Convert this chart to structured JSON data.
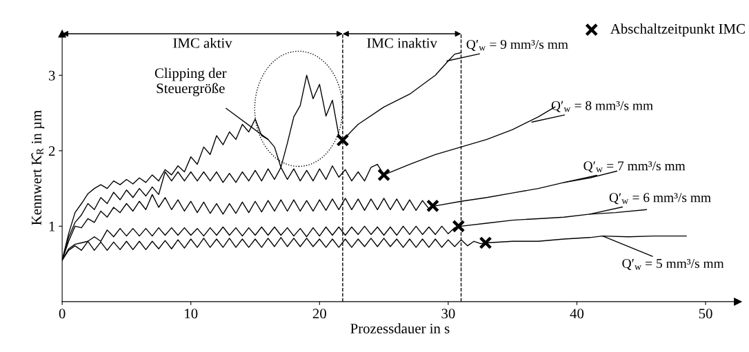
{
  "chart_data": {
    "type": "line",
    "xlabel": "Prozessdauer in s",
    "ylabel": "Kennwert K̂$_{R}$ in µm",
    "xlim": [
      0,
      52.5
    ],
    "ylim": [
      0,
      3.55
    ],
    "xticks": [
      0,
      10,
      20,
      30,
      40,
      50
    ],
    "yticks": [
      1,
      2,
      3
    ],
    "grid": false,
    "legend": "top right",
    "line_style": "solid",
    "series": [
      {
        "color": "#000000",
        "x": [
          0,
          0.5,
          1,
          1.5,
          2,
          2.5,
          3,
          3.5,
          4,
          4.5,
          5,
          5.5,
          6,
          6.5,
          7,
          7.5,
          8,
          8.5,
          9,
          9.5,
          10,
          10.5,
          11,
          11.5,
          12,
          12.5,
          13,
          13.5,
          14,
          14.5,
          15,
          15.5,
          16,
          16.5,
          17,
          17.5,
          18,
          18.5,
          19,
          19.5,
          20,
          20.5,
          21,
          21.5,
          22,
          22.5,
          23,
          23.5,
          24,
          24.5,
          25,
          25.5,
          26,
          26.5,
          27,
          27.5,
          28,
          28.5,
          29,
          29.5,
          30,
          30.5,
          31,
          31.5,
          32,
          32.5,
          33,
          35,
          37,
          39,
          41,
          42,
          44,
          46,
          48.5
        ],
        "values": [
          0.55,
          0.68,
          0.74,
          0.68,
          0.8,
          0.68,
          0.79,
          0.68,
          0.79,
          0.69,
          0.8,
          0.69,
          0.8,
          0.69,
          0.8,
          0.7,
          0.81,
          0.7,
          0.82,
          0.71,
          0.83,
          0.72,
          0.84,
          0.72,
          0.83,
          0.72,
          0.84,
          0.72,
          0.83,
          0.72,
          0.83,
          0.72,
          0.84,
          0.73,
          0.85,
          0.73,
          0.84,
          0.73,
          0.84,
          0.73,
          0.83,
          0.72,
          0.83,
          0.72,
          0.83,
          0.72,
          0.83,
          0.73,
          0.84,
          0.73,
          0.84,
          0.73,
          0.83,
          0.72,
          0.83,
          0.72,
          0.83,
          0.72,
          0.83,
          0.72,
          0.82,
          0.73,
          0.82,
          0.74,
          0.8,
          0.77,
          0.78,
          0.8,
          0.8,
          0.83,
          0.85,
          0.87,
          0.86,
          0.87,
          0.87
        ]
      },
      {
        "color": "#000000",
        "x": [
          0,
          0.5,
          1,
          1.5,
          2,
          2.5,
          3,
          3.5,
          4,
          4.5,
          5,
          5.5,
          6,
          6.5,
          7,
          7.5,
          8,
          8.5,
          9,
          9.5,
          10,
          10.5,
          11,
          11.5,
          12,
          12.5,
          13,
          13.5,
          14,
          14.5,
          15,
          15.5,
          16,
          16.5,
          17,
          17.5,
          18,
          18.5,
          19,
          19.5,
          20,
          20.5,
          21,
          21.5,
          22,
          22.5,
          23,
          23.5,
          24,
          24.5,
          25,
          25.5,
          26,
          26.5,
          27,
          27.5,
          28,
          28.5,
          29,
          29.5,
          30,
          30.5,
          31,
          33,
          35,
          37,
          39,
          41,
          43,
          45.4
        ],
        "values": [
          0.55,
          0.7,
          0.76,
          0.78,
          0.8,
          0.86,
          0.8,
          0.95,
          0.86,
          0.97,
          0.87,
          0.97,
          0.87,
          0.97,
          0.87,
          0.98,
          0.88,
          0.98,
          0.88,
          0.98,
          0.88,
          0.97,
          0.87,
          0.98,
          0.88,
          0.99,
          0.88,
          0.98,
          0.87,
          0.98,
          0.88,
          0.99,
          0.88,
          0.99,
          0.88,
          0.98,
          0.87,
          0.97,
          0.86,
          0.98,
          0.87,
          0.99,
          0.88,
          0.99,
          0.88,
          0.99,
          0.89,
          1.0,
          0.89,
          0.99,
          0.88,
          0.99,
          0.88,
          1.0,
          0.89,
          1.0,
          0.89,
          0.99,
          0.89,
          1.0,
          0.9,
          0.98,
          1.0,
          1.04,
          1.08,
          1.1,
          1.12,
          1.16,
          1.18,
          1.22
        ]
      },
      {
        "color": "#000000",
        "x": [
          0,
          0.5,
          1,
          1.5,
          2,
          2.5,
          3,
          3.5,
          4,
          4.5,
          5,
          5.5,
          6,
          6.5,
          7,
          7.5,
          8,
          8.5,
          9,
          9.5,
          10,
          10.5,
          11,
          11.5,
          12,
          12.5,
          13,
          13.5,
          14,
          14.5,
          15,
          15.5,
          16,
          16.5,
          17,
          17.5,
          18,
          18.5,
          19,
          19.5,
          20,
          20.5,
          21,
          21.5,
          22,
          22.5,
          23,
          23.5,
          24,
          24.5,
          25,
          25.5,
          26,
          26.5,
          27,
          27.5,
          28,
          28.5,
          29,
          31,
          33,
          35,
          37,
          39,
          41,
          43.1
        ],
        "values": [
          0.55,
          0.8,
          1.0,
          0.98,
          1.1,
          1.05,
          1.2,
          1.12,
          1.25,
          1.18,
          1.3,
          1.2,
          1.33,
          1.22,
          1.42,
          1.25,
          1.38,
          1.22,
          1.35,
          1.2,
          1.33,
          1.18,
          1.32,
          1.17,
          1.3,
          1.16,
          1.3,
          1.17,
          1.32,
          1.18,
          1.33,
          1.19,
          1.34,
          1.2,
          1.35,
          1.2,
          1.35,
          1.2,
          1.34,
          1.2,
          1.35,
          1.21,
          1.36,
          1.22,
          1.37,
          1.22,
          1.36,
          1.21,
          1.36,
          1.22,
          1.37,
          1.22,
          1.36,
          1.21,
          1.35,
          1.21,
          1.34,
          1.23,
          1.27,
          1.33,
          1.38,
          1.44,
          1.5,
          1.58,
          1.64,
          1.73
        ]
      },
      {
        "color": "#000000",
        "x": [
          0,
          0.5,
          1,
          1.5,
          2,
          2.5,
          3,
          3.5,
          4,
          4.5,
          5,
          5.5,
          6,
          6.5,
          7,
          7.5,
          8,
          8.5,
          9,
          9.5,
          10,
          10.5,
          11,
          11.5,
          12,
          12.5,
          13,
          13.5,
          14,
          14.5,
          15,
          15.5,
          16,
          16.5,
          17,
          17.5,
          18,
          18.5,
          19,
          19.5,
          20,
          20.5,
          21,
          21.5,
          22,
          22.5,
          23,
          23.5,
          24,
          24.5,
          25,
          27,
          29,
          31,
          33,
          35,
          37,
          38.3
        ],
        "values": [
          0.55,
          0.85,
          1.05,
          1.15,
          1.3,
          1.22,
          1.38,
          1.3,
          1.45,
          1.35,
          1.48,
          1.38,
          1.5,
          1.4,
          1.52,
          1.42,
          1.72,
          1.6,
          1.72,
          1.6,
          1.72,
          1.6,
          1.72,
          1.6,
          1.72,
          1.58,
          1.7,
          1.58,
          1.72,
          1.6,
          1.74,
          1.6,
          1.76,
          1.62,
          1.78,
          1.62,
          1.76,
          1.6,
          1.74,
          1.6,
          1.76,
          1.62,
          1.8,
          1.65,
          1.75,
          1.6,
          1.72,
          1.6,
          1.78,
          1.82,
          1.68,
          1.82,
          1.95,
          2.05,
          2.15,
          2.28,
          2.45,
          2.58
        ]
      },
      {
        "color": "#000000",
        "x": [
          0,
          0.5,
          1,
          1.5,
          2,
          2.5,
          3,
          3.5,
          4,
          4.5,
          5,
          5.5,
          6,
          6.5,
          7,
          7.5,
          8,
          8.5,
          9,
          9.5,
          10,
          10.5,
          11,
          11.5,
          12,
          12.5,
          13,
          13.5,
          14,
          14.5,
          15,
          15.5,
          16,
          16.5,
          17,
          17.5,
          18,
          18.5,
          19,
          19.5,
          20,
          20.5,
          21,
          21.5,
          21.8,
          23,
          25,
          27,
          29,
          30,
          30.5,
          31
        ],
        "values": [
          0.55,
          0.9,
          1.18,
          1.3,
          1.43,
          1.5,
          1.55,
          1.5,
          1.6,
          1.55,
          1.62,
          1.56,
          1.64,
          1.58,
          1.68,
          1.6,
          1.75,
          1.68,
          1.8,
          1.72,
          1.92,
          1.82,
          2.05,
          1.95,
          2.2,
          2.08,
          2.25,
          2.15,
          2.35,
          2.25,
          2.42,
          2.2,
          2.15,
          2.05,
          1.78,
          2.1,
          2.45,
          2.6,
          3.0,
          2.69,
          2.88,
          2.46,
          2.67,
          2.2,
          2.14,
          2.35,
          2.58,
          2.75,
          3.0,
          3.19,
          3.28,
          3.3
        ]
      },
      {
        "type": "scatter",
        "name": "Abschaltzeitpunkt IMC",
        "color": "#000000",
        "marker": "cross",
        "x": [
          21.8,
          25,
          28.8,
          30.8,
          32.9
        ],
        "values": [
          2.14,
          1.68,
          1.27,
          1.0,
          0.78
        ]
      }
    ],
    "ref_lines": [
      {
        "axis": "x",
        "value": 21.8,
        "line_style": "dashed"
      },
      {
        "axis": "x",
        "value": 31,
        "line_style": "dashed"
      }
    ],
    "annotations": [
      "IMC aktiv",
      "IMC inaktiv",
      {
        "text": "Clipping der\nSteuergröße",
        "x": 16,
        "y": 2.15
      },
      {
        "text": "Q′$_{w}$ = 9 mm³/s mm",
        "x": 29.9,
        "y": 3.19
      },
      {
        "text": "Q′$_{w}$ = 8 mm³/s mm",
        "x": 36.5,
        "y": 2.38
      },
      {
        "text": "Q′$_{w}$ = 7 mm³/s mm",
        "x": 39.0,
        "y": 1.58
      },
      {
        "text": "Q′$_{w}$ = 6 mm³/s mm",
        "x": 41.0,
        "y": 1.16
      },
      {
        "text": "Q′$_{w}$ = 5 mm³/s mm",
        "x": 42.0,
        "y": 0.87
      }
    ]
  }
}
